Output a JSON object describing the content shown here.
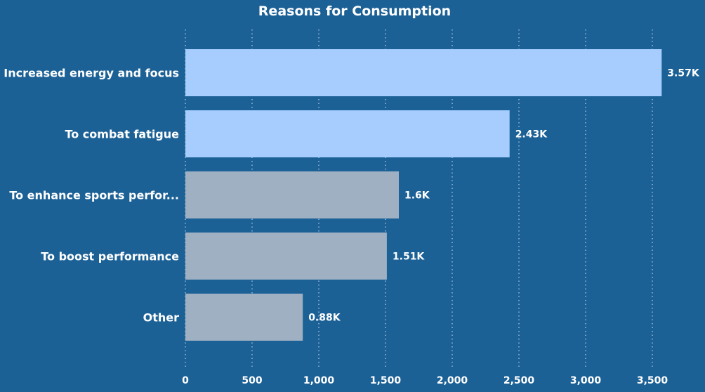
{
  "chart_data": {
    "type": "bar",
    "orientation": "horizontal",
    "title": "Reasons for Consumption",
    "categories": [
      "Increased energy and focus",
      "To combat fatigue",
      "To enhance sports perfor...",
      "To boost performance",
      "Other"
    ],
    "values": [
      3570,
      2430,
      1600,
      1510,
      880
    ],
    "value_labels": [
      "3.57K",
      "2.43K",
      "1.6K",
      "1.51K",
      "0.88K"
    ],
    "bar_colors": [
      "#a6cdfe",
      "#a6cdfe",
      "#9fb0c3",
      "#9fb0c3",
      "#9fb0c3"
    ],
    "xlim": [
      0,
      3800
    ],
    "xticks": [
      0,
      500,
      1000,
      1500,
      2000,
      2500,
      3000,
      3500
    ],
    "xtick_labels": [
      "0",
      "500",
      "1,000",
      "1,500",
      "2,000",
      "2,500",
      "3,000",
      "3,500"
    ],
    "grid": true,
    "background": "#1c6196"
  }
}
